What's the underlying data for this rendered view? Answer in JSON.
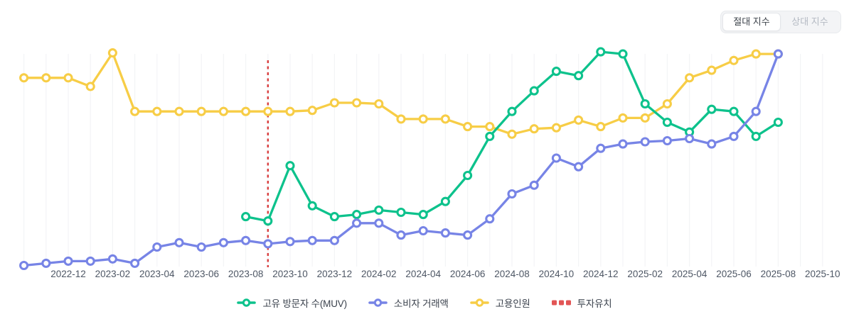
{
  "toggle": {
    "options": [
      {
        "label": "절대 지수",
        "selected": true
      },
      {
        "label": "상대 지수",
        "selected": false
      }
    ]
  },
  "colors": {
    "muv": "#0dc28c",
    "transactions": "#7784e6",
    "employment": "#f7cd46",
    "investment": "#d94040",
    "investment_legend": "#e25555",
    "grid": "#f3f4f6",
    "tick_text": "#4e5765",
    "legend_text": "#3c434e"
  },
  "chart_data": {
    "type": "line",
    "x_unit": "month",
    "x_start": "2022-10",
    "x_end": "2025-10",
    "x_tick_labels": [
      "2022-12",
      "2023-02",
      "2023-04",
      "2023-06",
      "2023-08",
      "2023-10",
      "2023-12",
      "2024-02",
      "2024-04",
      "2024-06",
      "2024-08",
      "2024-10",
      "2024-12",
      "2025-02",
      "2025-04",
      "2025-06",
      "2025-08",
      "2025-10"
    ],
    "y_axis": {
      "visible": false,
      "note": "index scale, no labeled ticks",
      "ylim": [
        0,
        105
      ]
    },
    "grid": "vertical-monthly",
    "series": [
      {
        "key": "muv",
        "name": "고유 방문자 수(MUV)",
        "color": "#0dc28c",
        "start_month": "2023-08",
        "monthly_values": [
          23,
          21,
          46.5,
          28,
          23,
          24,
          26,
          25,
          24,
          30,
          42,
          60,
          71.5,
          81,
          90,
          88,
          99,
          98,
          75,
          66.5,
          62,
          72.5,
          71.5,
          60,
          66.5
        ]
      },
      {
        "key": "transactions",
        "name": "소비자 거래액",
        "color": "#7784e6",
        "start_month": "2022-10",
        "monthly_values": [
          0.5,
          1.5,
          2.5,
          2.5,
          3.5,
          1.5,
          9,
          11,
          9,
          11,
          12,
          10.5,
          11.5,
          12,
          12,
          20,
          20,
          14.5,
          16.5,
          15.5,
          14.5,
          22,
          33.5,
          37.5,
          50,
          46,
          54.5,
          56.5,
          57.5,
          58,
          59,
          56.5,
          60,
          71.5,
          98
        ]
      },
      {
        "key": "employment",
        "name": "고용인원",
        "color": "#f7cd46",
        "start_month": "2022-10",
        "monthly_values": [
          87,
          87,
          87,
          83,
          98.5,
          71.5,
          71.5,
          71.5,
          71.5,
          71.5,
          71.5,
          71.5,
          71.5,
          72,
          75.5,
          75.5,
          75,
          68,
          68,
          68,
          64.5,
          64.5,
          61,
          63.5,
          64,
          67.5,
          64.5,
          68.5,
          68.5,
          75,
          87,
          90.5,
          95,
          98,
          98
        ]
      }
    ],
    "annotations": [
      {
        "type": "vline",
        "label": "투자유치",
        "month": "2023-09",
        "style": "dashed",
        "color": "#d94040"
      }
    ]
  },
  "legend": {
    "items": [
      {
        "label": "고유 방문자 수(MUV)",
        "marker": "line-dot",
        "color": "#0dc28c"
      },
      {
        "label": "소비자 거래액",
        "marker": "line-dot",
        "color": "#7784e6"
      },
      {
        "label": "고용인원",
        "marker": "line-dot",
        "color": "#f7cd46"
      },
      {
        "label": "투자유치",
        "marker": "dashes",
        "color": "#e25555"
      }
    ]
  }
}
